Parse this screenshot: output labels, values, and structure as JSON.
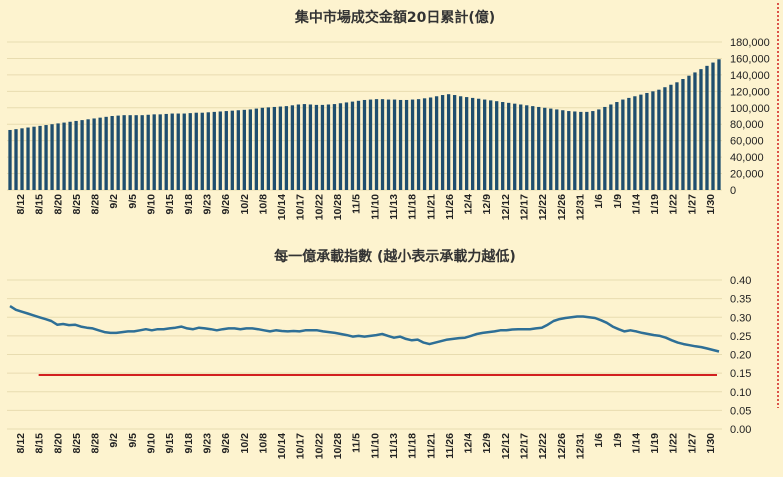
{
  "colors": {
    "background": "#fdf3cf",
    "bar": "#1f4e6e",
    "line": "#2e6f96",
    "reference": "#d21f1f",
    "marker": "#d21f1f"
  },
  "chart_data": [
    {
      "type": "bar",
      "title": "集中市場成交金額20日累計(億)",
      "ylim": [
        0,
        180000
      ],
      "yticks": [
        0,
        20000,
        40000,
        60000,
        80000,
        100000,
        120000,
        140000,
        160000,
        180000
      ],
      "ytick_labels": [
        "0",
        "20,000",
        "40,000",
        "60,000",
        "80,000",
        "100,000",
        "120,000",
        "140,000",
        "160,000",
        "180,000"
      ],
      "xtick_labels": [
        "8/12",
        "8/15",
        "8/20",
        "8/25",
        "8/28",
        "9/2",
        "9/5",
        "9/10",
        "9/15",
        "9/18",
        "9/23",
        "9/26",
        "10/2",
        "10/8",
        "10/14",
        "10/17",
        "10/22",
        "10/28",
        "11/5",
        "11/10",
        "11/13",
        "11/18",
        "11/21",
        "11/26",
        "12/4",
        "12/9",
        "12/12",
        "12/17",
        "12/22",
        "12/26",
        "12/31",
        "1/6",
        "1/9",
        "1/14",
        "1/19",
        "1/22",
        "1/27",
        "1/30"
      ],
      "values": [
        73000,
        74000,
        75000,
        76000,
        77000,
        78000,
        79000,
        80000,
        81000,
        82000,
        83000,
        84000,
        85000,
        86000,
        87000,
        88000,
        89000,
        90000,
        90500,
        91000,
        91000,
        91000,
        91000,
        91500,
        92000,
        92000,
        92500,
        93000,
        93000,
        93000,
        93500,
        94000,
        94000,
        94500,
        95000,
        95500,
        96000,
        96500,
        97000,
        97500,
        98000,
        99000,
        100000,
        100500,
        101000,
        101500,
        102000,
        103000,
        104000,
        104500,
        104000,
        103500,
        103500,
        104000,
        104500,
        105500,
        106500,
        107500,
        108500,
        109500,
        110000,
        110500,
        110500,
        110000,
        110000,
        109500,
        109500,
        110000,
        110500,
        111500,
        112500,
        114000,
        115500,
        116500,
        115500,
        114000,
        113000,
        112000,
        111000,
        110000,
        109000,
        108000,
        107000,
        106000,
        105000,
        104000,
        103000,
        102000,
        101000,
        100000,
        99000,
        98000,
        97000,
        96000,
        95500,
        95000,
        95000,
        96000,
        98000,
        101000,
        104000,
        107000,
        110000,
        112000,
        114000,
        116000,
        118000,
        120000,
        122000,
        125000,
        128000,
        131000,
        135000,
        139000,
        143000,
        147000,
        151000,
        155000,
        159000
      ]
    },
    {
      "type": "line",
      "title": "每一億承載指數 (越小表示承載力越低)",
      "ylim": [
        0,
        0.4
      ],
      "yticks": [
        0,
        0.05,
        0.1,
        0.15,
        0.2,
        0.25,
        0.3,
        0.35,
        0.4
      ],
      "ytick_labels": [
        "0.00",
        "0.05",
        "0.10",
        "0.15",
        "0.20",
        "0.25",
        "0.30",
        "0.35",
        "0.40"
      ],
      "xtick_labels": [
        "8/12",
        "8/15",
        "8/20",
        "8/25",
        "8/28",
        "9/2",
        "9/5",
        "9/10",
        "9/15",
        "9/18",
        "9/23",
        "9/26",
        "10/2",
        "10/8",
        "10/14",
        "10/17",
        "10/22",
        "10/28",
        "11/5",
        "11/10",
        "11/13",
        "11/18",
        "11/21",
        "11/26",
        "12/4",
        "12/9",
        "12/12",
        "12/17",
        "12/22",
        "12/26",
        "12/31",
        "1/6",
        "1/9",
        "1/14",
        "1/19",
        "1/22",
        "1/27",
        "1/30"
      ],
      "values": [
        0.33,
        0.32,
        0.315,
        0.31,
        0.305,
        0.3,
        0.295,
        0.29,
        0.28,
        0.282,
        0.279,
        0.28,
        0.275,
        0.272,
        0.27,
        0.265,
        0.26,
        0.258,
        0.258,
        0.26,
        0.262,
        0.262,
        0.265,
        0.268,
        0.265,
        0.268,
        0.268,
        0.27,
        0.272,
        0.275,
        0.27,
        0.268,
        0.272,
        0.27,
        0.268,
        0.265,
        0.268,
        0.27,
        0.27,
        0.268,
        0.27,
        0.27,
        0.268,
        0.265,
        0.262,
        0.265,
        0.263,
        0.262,
        0.263,
        0.262,
        0.265,
        0.265,
        0.265,
        0.262,
        0.26,
        0.258,
        0.255,
        0.252,
        0.248,
        0.25,
        0.248,
        0.25,
        0.252,
        0.255,
        0.25,
        0.245,
        0.248,
        0.242,
        0.238,
        0.24,
        0.232,
        0.228,
        0.232,
        0.236,
        0.24,
        0.242,
        0.244,
        0.245,
        0.25,
        0.255,
        0.258,
        0.26,
        0.262,
        0.265,
        0.265,
        0.267,
        0.268,
        0.268,
        0.268,
        0.27,
        0.272,
        0.28,
        0.29,
        0.295,
        0.298,
        0.3,
        0.302,
        0.302,
        0.3,
        0.298,
        0.292,
        0.285,
        0.275,
        0.268,
        0.262,
        0.265,
        0.262,
        0.258,
        0.255,
        0.252,
        0.25,
        0.245,
        0.238,
        0.232,
        0.228,
        0.225,
        0.222,
        0.22,
        0.216,
        0.212,
        0.208
      ],
      "reference_line": {
        "value": 0.145,
        "start_label": "8/15"
      }
    }
  ]
}
